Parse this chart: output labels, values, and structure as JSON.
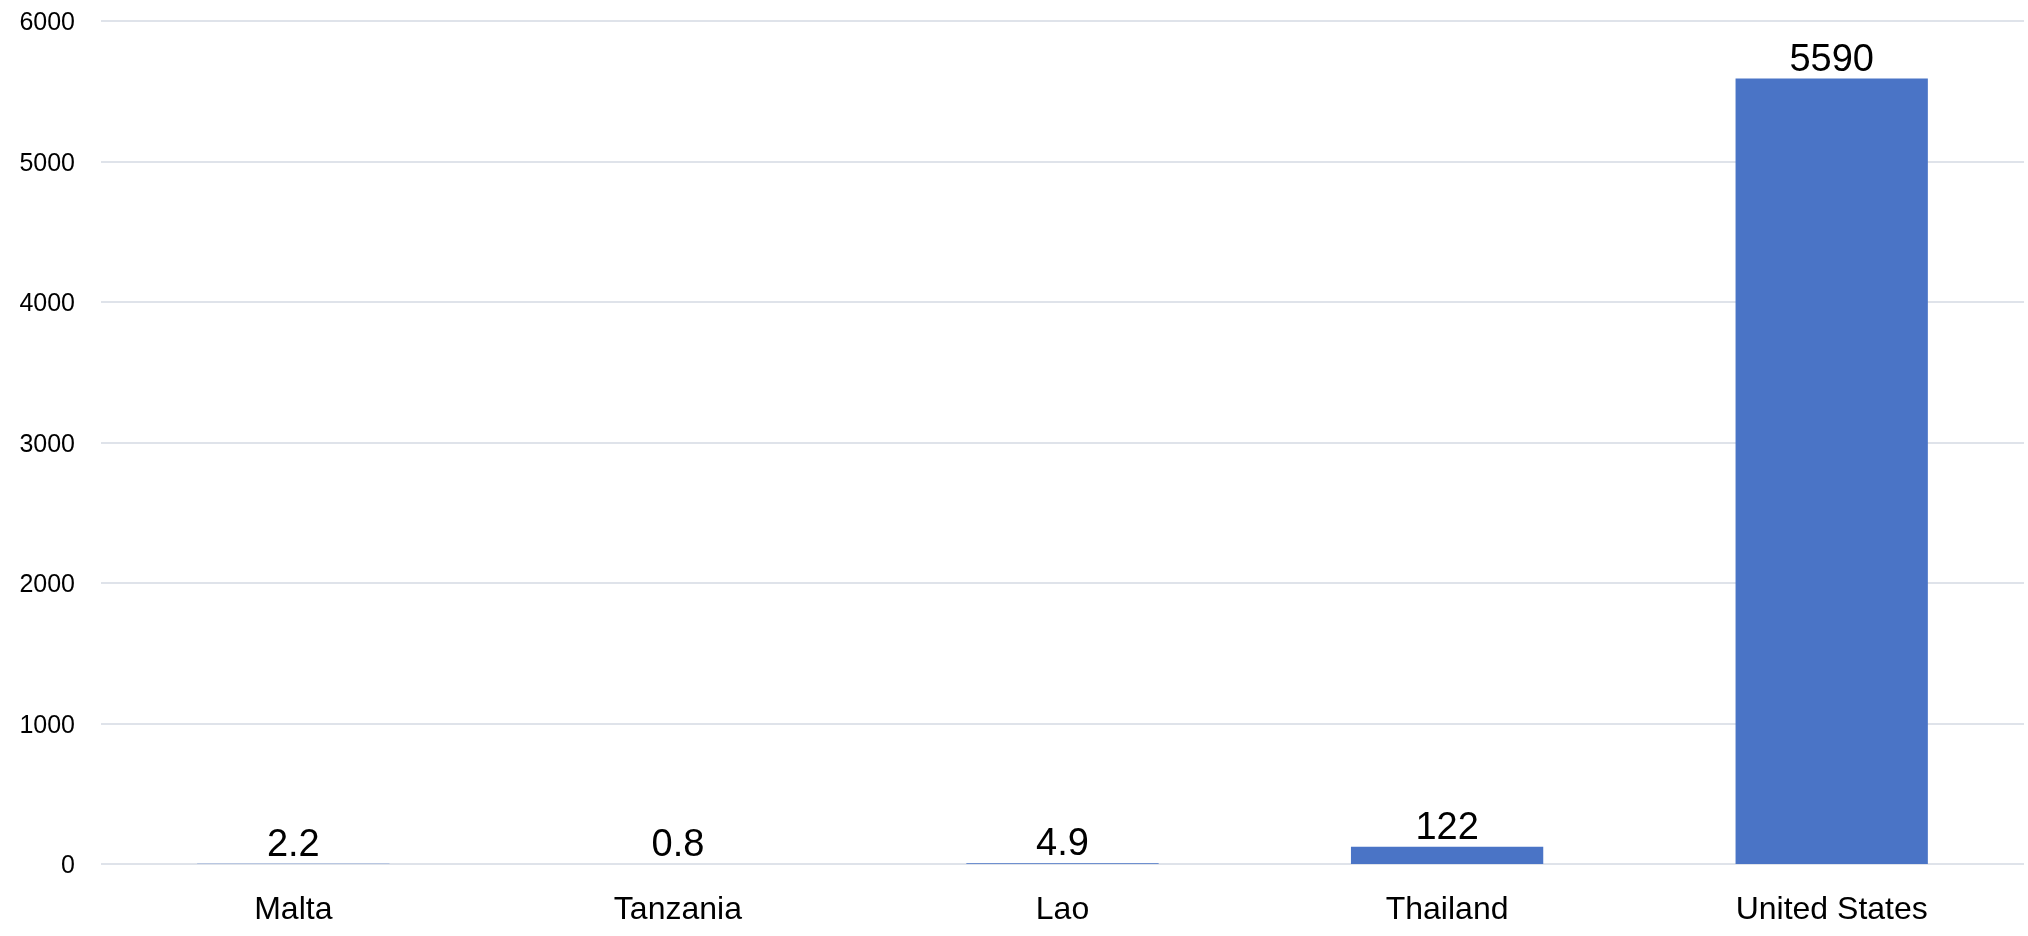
{
  "chart_data": {
    "type": "bar",
    "categories": [
      "Malta",
      "Tanzania",
      "Lao",
      "Thailand",
      "United States"
    ],
    "values": [
      2.2,
      0.8,
      4.9,
      122,
      5590
    ],
    "color": "#4a74c6",
    "ylim": [
      0,
      6000
    ],
    "yticks": [
      0,
      1000,
      2000,
      3000,
      4000,
      5000,
      6000
    ],
    "grid": "y",
    "data_labels": true
  }
}
